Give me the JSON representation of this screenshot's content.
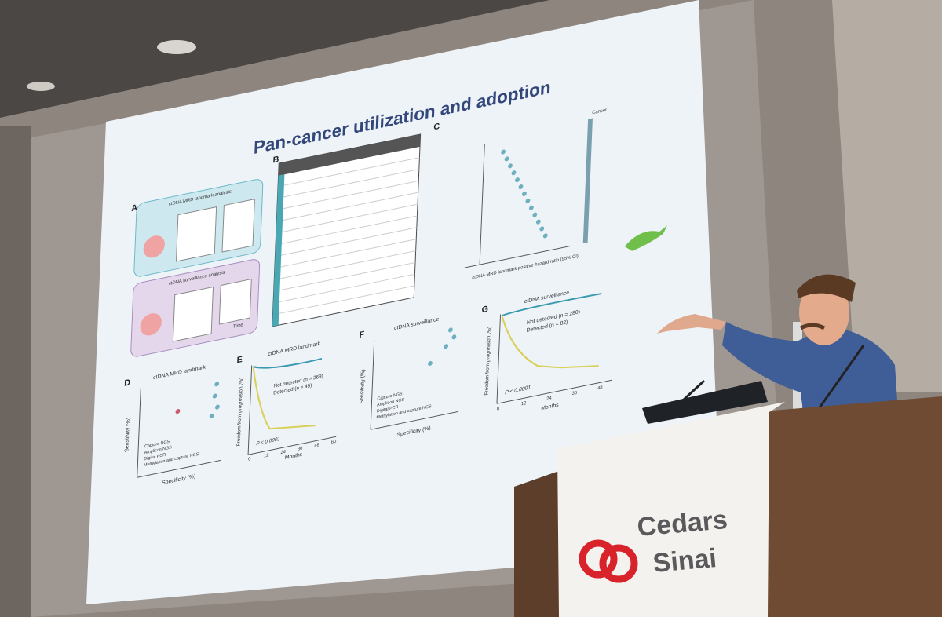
{
  "slide": {
    "title": "Pan-cancer utilization and adoption",
    "panels": [
      "A",
      "B",
      "C",
      "D",
      "E",
      "F",
      "G"
    ],
    "panel_a": {
      "top": "ctDNA MRD landmark analysis",
      "bottom": "ctDNA surveillance analysis",
      "time": "Time"
    },
    "chart_d": {
      "title": "ctDNA MRD landmark",
      "x_label": "Specificity (%)",
      "y_label": "Sensitivity (%)",
      "legend": [
        "Capture NGS",
        "Amplicon NGS",
        "Digital PCR",
        "Methylation and capture NGS"
      ]
    },
    "chart_e": {
      "title": "ctDNA MRD landmark",
      "x_label": "Months",
      "y_label": "Freedom from progression (%)",
      "legend": [
        "Not detected (n = 269)",
        "Detected (n = 45)"
      ],
      "p_value": "P < 0.0001",
      "x_ticks": [
        "0",
        "12",
        "24",
        "36",
        "48",
        "60"
      ]
    },
    "chart_f": {
      "title": "ctDNA surveillance",
      "x_label": "Specificity (%)",
      "y_label": "Sensitivity (%)",
      "legend": [
        "Capture NGS",
        "Amplicon NGS",
        "Digital PCR",
        "Methylation and capture NGS"
      ]
    },
    "chart_g": {
      "title": "ctDNA surveillance",
      "x_label": "Months",
      "y_label": "Freedom from progression (%)",
      "legend": [
        "Not detected (n = 280)",
        "Detected (n = 82)"
      ],
      "p_value": "P < 0.0001",
      "x_ticks": [
        "0",
        "12",
        "24",
        "36",
        "48"
      ]
    },
    "chart_c": {
      "x_label": "ctDNA MRD landmark positive hazard ratio (95% CI)",
      "legend_header": "Cancer"
    }
  },
  "podium": {
    "logo_line1": "Cedars",
    "logo_line2": "Sinai"
  }
}
